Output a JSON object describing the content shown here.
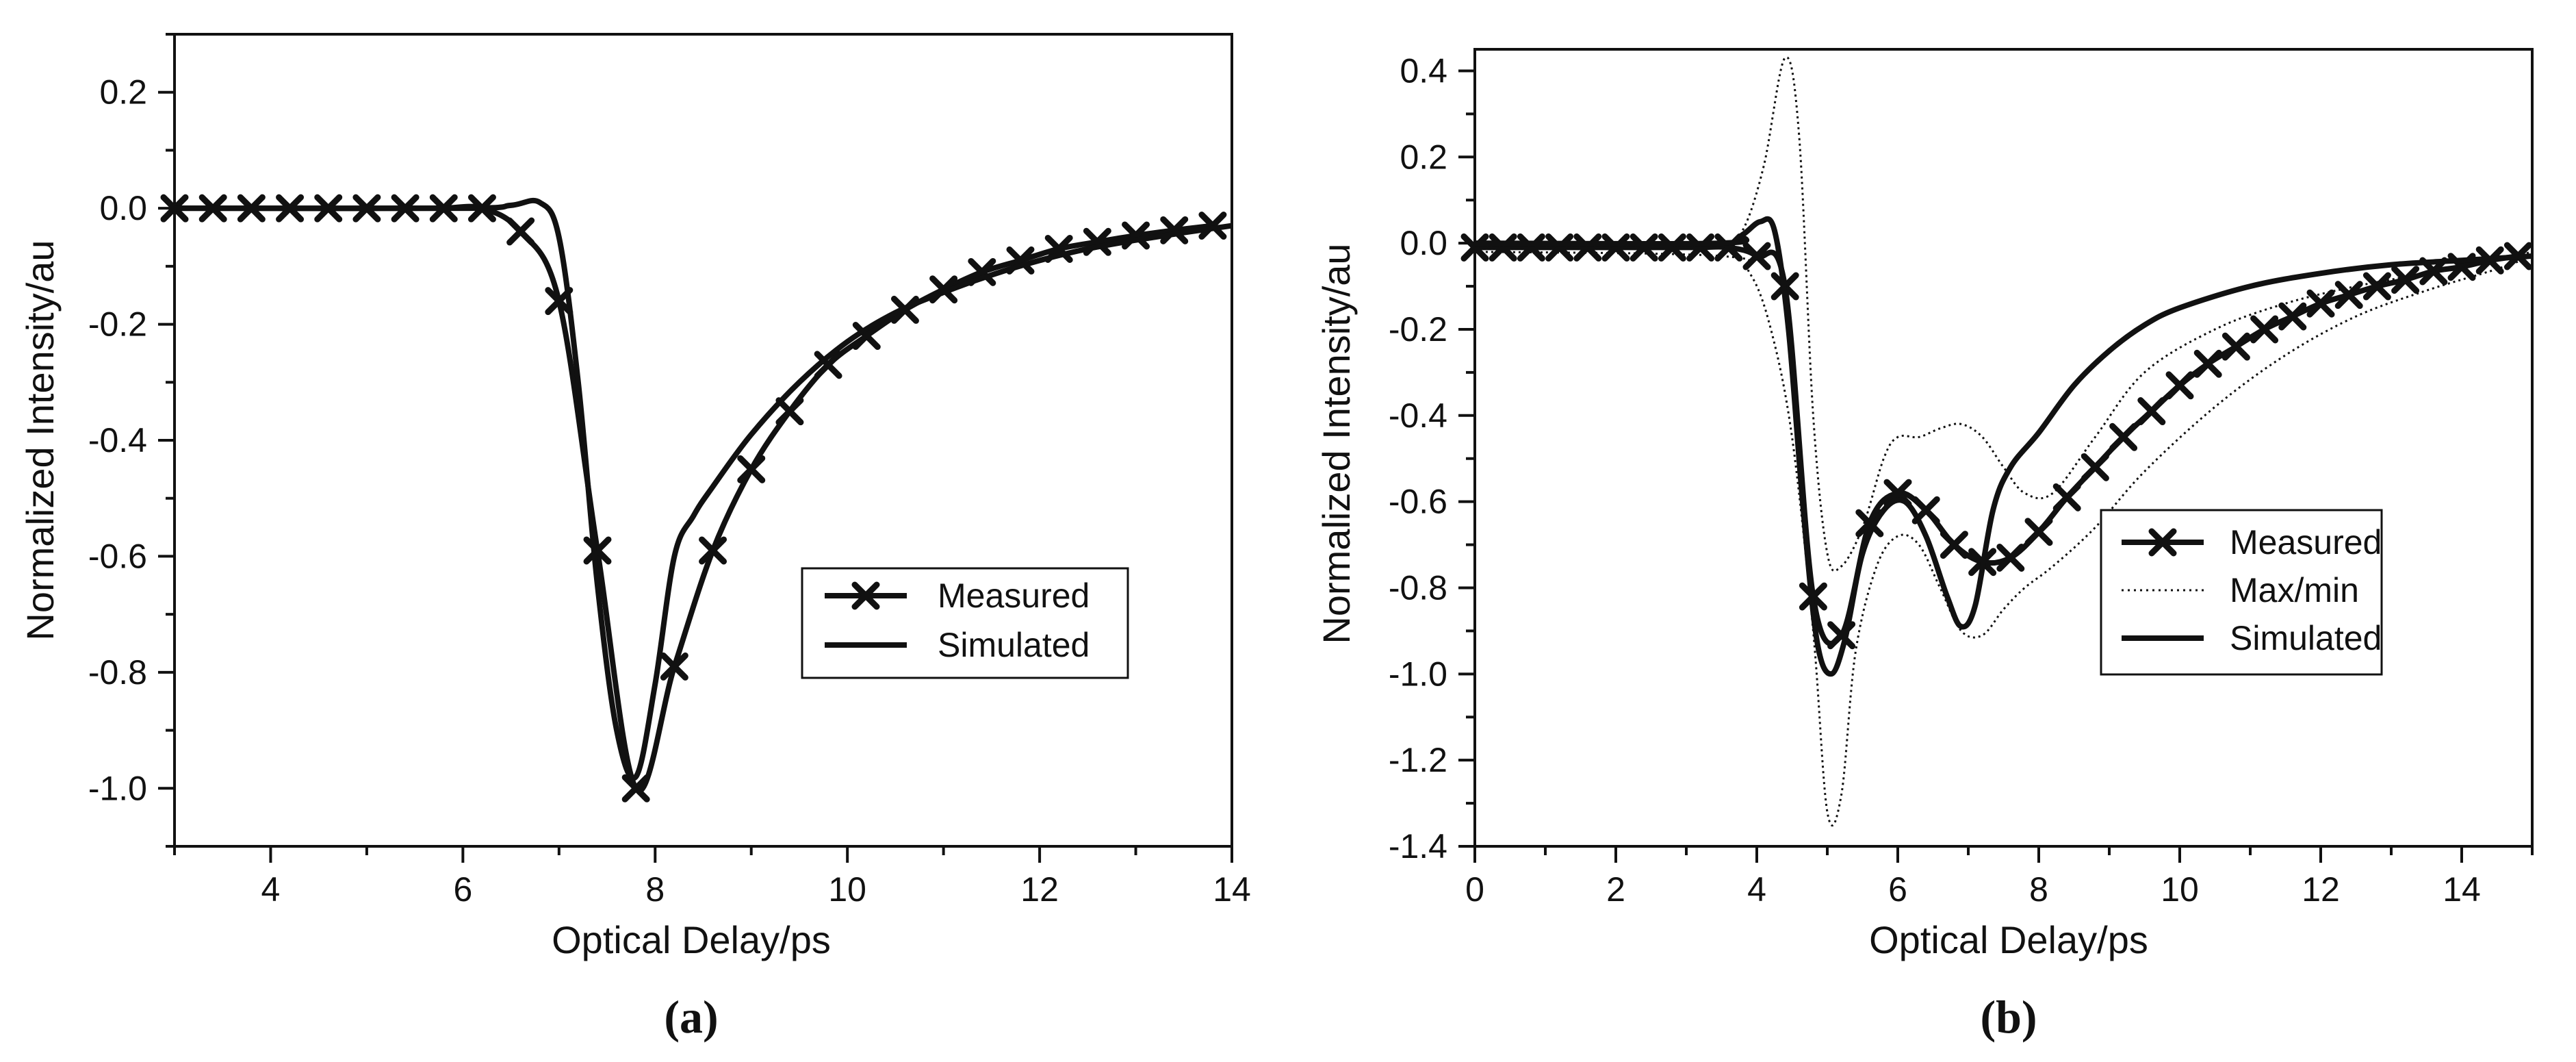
{
  "colors": {
    "ink": "#111111",
    "background": "#ffffff"
  },
  "chart_data": [
    {
      "type": "line",
      "panel_label": "(a)",
      "title": "",
      "xlabel": "Optical Delay/ps",
      "ylabel": "Normalized Intensity/au",
      "xlim": [
        3,
        14
      ],
      "ylim": [
        -1.1,
        0.3
      ],
      "xticks": [
        4,
        6,
        8,
        10,
        12,
        14
      ],
      "xtick_labels": [
        "4",
        "6",
        "8",
        "10",
        "12",
        "14"
      ],
      "yticks": [
        0.2,
        0.0,
        -0.2,
        -0.4,
        -0.6,
        -0.8,
        -1.0
      ],
      "ytick_labels": [
        "0.2",
        "0.0",
        "-0.2",
        "-0.4",
        "-0.6",
        "-0.8",
        "-1.0"
      ],
      "legend_position": "center-right",
      "series": [
        {
          "name": "Measured",
          "legend_label": "Measured",
          "style": "solid-x-markers",
          "x": [
            3.0,
            3.4,
            3.8,
            4.2,
            4.6,
            5.0,
            5.4,
            5.8,
            6.2,
            6.6,
            7.0,
            7.4,
            7.8,
            8.2,
            8.6,
            9.0,
            9.4,
            9.8,
            10.2,
            10.6,
            11.0,
            11.4,
            11.8,
            12.2,
            12.6,
            13.0,
            13.4,
            13.8
          ],
          "y": [
            0.0,
            0.0,
            0.0,
            0.0,
            0.0,
            0.0,
            0.0,
            0.0,
            0.0,
            -0.04,
            -0.16,
            -0.59,
            -1.0,
            -0.79,
            -0.59,
            -0.45,
            -0.35,
            -0.27,
            -0.22,
            -0.175,
            -0.14,
            -0.11,
            -0.09,
            -0.07,
            -0.058,
            -0.047,
            -0.038,
            -0.03
          ]
        },
        {
          "name": "Simulated",
          "legend_label": "Simulated",
          "style": "solid",
          "x": [
            3.0,
            6.0,
            6.5,
            6.8,
            7.0,
            7.2,
            7.4,
            7.6,
            7.8,
            8.0,
            8.2,
            8.4,
            8.6,
            9.0,
            9.5,
            10.0,
            10.5,
            11.0,
            11.5,
            12.0,
            12.5,
            13.0,
            13.5,
            14.0
          ],
          "y": [
            0.0,
            0.0,
            0.005,
            0.01,
            -0.05,
            -0.3,
            -0.65,
            -0.9,
            -0.98,
            -0.82,
            -0.6,
            -0.53,
            -0.48,
            -0.39,
            -0.3,
            -0.23,
            -0.18,
            -0.145,
            -0.115,
            -0.09,
            -0.07,
            -0.055,
            -0.042,
            -0.03
          ]
        }
      ]
    },
    {
      "type": "line",
      "panel_label": "(b)",
      "title": "",
      "xlabel": "Optical Delay/ps",
      "ylabel": "Normalized Intensity/au",
      "xlim": [
        0,
        15
      ],
      "ylim": [
        -1.4,
        0.45
      ],
      "xticks": [
        0,
        2,
        4,
        6,
        8,
        10,
        12,
        14
      ],
      "xtick_labels": [
        "0",
        "2",
        "4",
        "6",
        "8",
        "10",
        "12",
        "14"
      ],
      "yticks": [
        0.4,
        0.2,
        0.0,
        -0.2,
        -0.4,
        -0.6,
        -0.8,
        -1.0,
        -1.2,
        -1.4
      ],
      "ytick_labels": [
        "0.4",
        "0.2",
        "0.0",
        "-0.2",
        "-0.4",
        "-0.6",
        "-0.8",
        "-1.0",
        "-1.2",
        "-1.4"
      ],
      "legend_position": "center-right",
      "series": [
        {
          "name": "Measured",
          "legend_label": "Measured",
          "style": "solid-x-markers",
          "x": [
            0.0,
            0.4,
            0.8,
            1.2,
            1.6,
            2.0,
            2.4,
            2.8,
            3.2,
            3.6,
            4.0,
            4.4,
            4.8,
            5.2,
            5.6,
            6.0,
            6.4,
            6.8,
            7.2,
            7.6,
            8.0,
            8.4,
            8.8,
            9.2,
            9.6,
            10.0,
            10.4,
            10.8,
            11.2,
            11.6,
            12.0,
            12.4,
            12.8,
            13.2,
            13.6,
            14.0,
            14.4,
            14.8
          ],
          "y": [
            -0.01,
            -0.01,
            -0.01,
            -0.01,
            -0.01,
            -0.01,
            -0.01,
            -0.01,
            -0.01,
            -0.01,
            -0.03,
            -0.1,
            -0.82,
            -0.91,
            -0.65,
            -0.58,
            -0.62,
            -0.7,
            -0.74,
            -0.73,
            -0.67,
            -0.59,
            -0.52,
            -0.45,
            -0.39,
            -0.33,
            -0.28,
            -0.24,
            -0.2,
            -0.17,
            -0.14,
            -0.12,
            -0.1,
            -0.085,
            -0.065,
            -0.055,
            -0.04,
            -0.03
          ]
        },
        {
          "name": "Max",
          "legend_label": "Max/min",
          "style": "dotted",
          "x": [
            0.0,
            3.5,
            3.8,
            4.1,
            4.4,
            4.6,
            4.8,
            5.0,
            5.2,
            5.5,
            5.8,
            6.0,
            6.3,
            6.6,
            6.9,
            7.2,
            7.5,
            7.8,
            8.2,
            8.8,
            9.5,
            10.5,
            11.5,
            12.5,
            13.5,
            14.5,
            15.0
          ],
          "y": [
            0.0,
            0.0,
            0.03,
            0.18,
            0.43,
            0.25,
            -0.4,
            -0.72,
            -0.75,
            -0.66,
            -0.5,
            -0.45,
            -0.45,
            -0.43,
            -0.42,
            -0.45,
            -0.52,
            -0.58,
            -0.58,
            -0.45,
            -0.3,
            -0.2,
            -0.14,
            -0.1,
            -0.07,
            -0.04,
            -0.02
          ]
        },
        {
          "name": "Min",
          "legend_label": "",
          "style": "dotted",
          "x": [
            0.0,
            3.5,
            3.9,
            4.2,
            4.5,
            4.8,
            5.0,
            5.2,
            5.4,
            5.7,
            6.0,
            6.3,
            6.6,
            6.9,
            7.2,
            7.5,
            7.8,
            8.2,
            8.8,
            9.5,
            10.5,
            11.5,
            12.5,
            13.5,
            14.5,
            15.0
          ],
          "y": [
            -0.02,
            -0.03,
            -0.07,
            -0.2,
            -0.45,
            -0.9,
            -1.32,
            -1.28,
            -0.95,
            -0.75,
            -0.68,
            -0.7,
            -0.8,
            -0.9,
            -0.91,
            -0.85,
            -0.8,
            -0.75,
            -0.66,
            -0.53,
            -0.38,
            -0.26,
            -0.17,
            -0.11,
            -0.06,
            -0.03
          ]
        },
        {
          "name": "Simulated",
          "legend_label": "Simulated",
          "style": "solid",
          "x": [
            0.0,
            3.5,
            3.8,
            4.05,
            4.25,
            4.45,
            4.65,
            4.85,
            5.05,
            5.25,
            5.5,
            5.8,
            6.1,
            6.4,
            6.7,
            6.9,
            7.1,
            7.35,
            7.6,
            8.0,
            8.5,
            9.0,
            9.5,
            10.0,
            11.0,
            12.0,
            13.0,
            14.0,
            15.0
          ],
          "y": [
            0.0,
            0.0,
            0.02,
            0.05,
            0.03,
            -0.2,
            -0.6,
            -0.92,
            -1.0,
            -0.92,
            -0.72,
            -0.62,
            -0.6,
            -0.68,
            -0.82,
            -0.89,
            -0.84,
            -0.62,
            -0.52,
            -0.44,
            -0.33,
            -0.25,
            -0.19,
            -0.15,
            -0.1,
            -0.07,
            -0.05,
            -0.04,
            -0.03
          ]
        }
      ]
    }
  ]
}
